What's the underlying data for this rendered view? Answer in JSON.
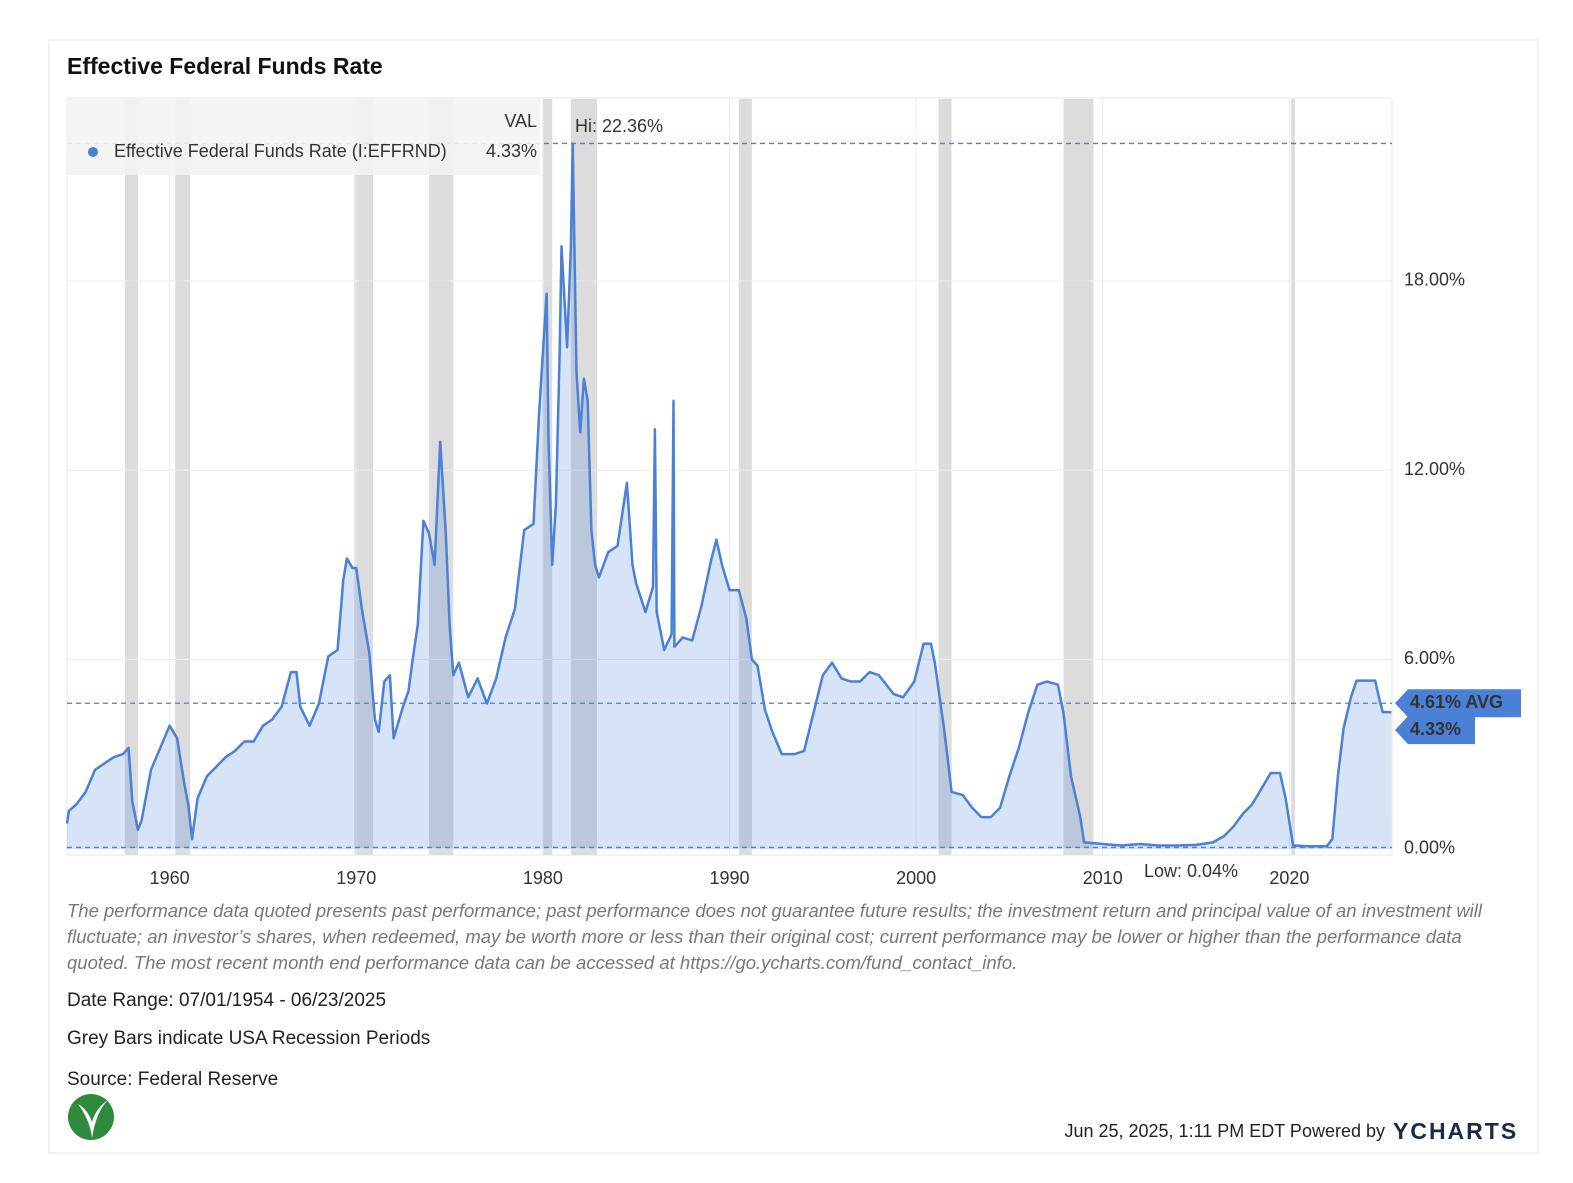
{
  "chart_data": {
    "type": "line",
    "title": "Effective Federal Funds Rate",
    "legend_header": "VAL",
    "series": [
      {
        "name": "Effective Federal Funds Rate (I:EFFRND)",
        "color": "#4a80d6",
        "values": [
          0.8,
          1.2,
          1.4,
          1.8,
          2.5,
          2.7,
          2.9,
          3.0,
          3.2,
          1.5,
          0.6,
          0.9,
          2.5,
          3.2,
          3.9,
          3.5,
          2.0,
          1.4,
          0.3,
          1.6,
          2.3,
          2.6,
          2.9,
          3.1,
          3.4,
          3.4,
          3.9,
          4.1,
          4.5,
          5.6,
          5.6,
          4.5,
          3.9,
          4.6,
          6.1,
          6.3,
          8.5,
          9.2,
          8.9,
          8.9,
          7.6,
          6.2,
          4.1,
          3.7,
          5.3,
          5.5,
          3.5,
          4.5,
          5.0,
          5.9,
          7.1,
          10.4,
          10.0,
          9.0,
          12.9,
          10.0,
          7.1,
          5.5,
          5.9,
          4.8,
          5.4,
          4.6,
          5.4,
          6.7,
          7.6,
          10.1,
          10.3,
          13.8,
          17.6,
          13.0,
          9.0,
          10.9,
          15.8,
          19.1,
          15.9,
          19.1,
          22.36,
          15.1,
          13.2,
          14.9,
          14.2,
          10.1,
          9.0,
          8.6,
          9.4,
          9.6,
          11.6,
          9.0,
          8.4,
          7.5,
          8.3,
          13.3,
          7.5,
          6.3,
          6.8,
          14.2,
          6.4,
          6.7,
          6.6,
          7.7,
          9.1,
          9.8,
          9.0,
          8.2,
          8.2,
          7.3,
          6.0,
          5.8,
          4.4,
          3.7,
          3.0,
          3.0,
          3.1,
          4.3,
          5.5,
          5.9,
          5.4,
          5.3,
          5.3,
          5.6,
          5.5,
          4.9,
          4.8,
          5.3,
          6.5,
          6.5,
          5.9,
          3.8,
          1.8,
          1.7,
          1.3,
          1.0,
          1.0,
          1.3,
          2.3,
          3.2,
          4.3,
          5.2,
          5.3,
          5.2,
          4.3,
          2.3,
          1.0,
          0.2,
          0.15,
          0.1,
          0.15,
          0.1,
          0.1,
          0.12,
          0.2,
          0.4,
          0.7,
          1.1,
          1.4,
          1.9,
          2.4,
          2.4,
          1.6,
          0.1,
          0.08,
          0.08,
          0.3,
          2.3,
          3.8,
          4.8,
          5.33,
          5.33,
          4.8,
          4.33,
          4.33
        ]
      }
    ],
    "x": [
      1954.5,
      1954.6,
      1955,
      1955.5,
      1956,
      1956.5,
      1957,
      1957.5,
      1957.8,
      1958.0,
      1958.3,
      1958.5,
      1959,
      1959.5,
      1960,
      1960.4,
      1960.8,
      1961.0,
      1961.2,
      1961.5,
      1962,
      1962.5,
      1963,
      1963.5,
      1964,
      1964.5,
      1965,
      1965.5,
      1966,
      1966.5,
      1966.8,
      1967,
      1967.5,
      1968,
      1968.5,
      1969,
      1969.3,
      1969.5,
      1969.8,
      1970,
      1970.3,
      1970.7,
      1971,
      1971.2,
      1971.5,
      1971.8,
      1972,
      1972.5,
      1972.8,
      1973,
      1973.3,
      1973.6,
      1973.9,
      1974.2,
      1974.5,
      1974.8,
      1975.0,
      1975.2,
      1975.5,
      1976,
      1976.5,
      1977,
      1977.5,
      1978,
      1978.5,
      1979,
      1979.5,
      1979.8,
      1980.2,
      1980.3,
      1980.5,
      1980.7,
      1980.9,
      1981.0,
      1981.3,
      1981.5,
      1981.6,
      1981.8,
      1982,
      1982.2,
      1982.4,
      1982.6,
      1982.8,
      1983,
      1983.5,
      1984,
      1984.5,
      1984.8,
      1985,
      1985.5,
      1985.9,
      1986.0,
      1986.1,
      1986.5,
      1986.9,
      1987.0,
      1987.05,
      1987.5,
      1988,
      1988.5,
      1989,
      1989.3,
      1989.6,
      1990,
      1990.5,
      1990.9,
      1991.2,
      1991.5,
      1991.9,
      1992.3,
      1992.8,
      1993.5,
      1994,
      1994.5,
      1995,
      1995.5,
      1996,
      1996.5,
      1997,
      1997.5,
      1998,
      1998.8,
      1999.3,
      1999.9,
      2000.4,
      2000.8,
      2001,
      2001.5,
      2001.9,
      2002.5,
      2003,
      2003.5,
      2004,
      2004.5,
      2005,
      2005.5,
      2006,
      2006.5,
      2007,
      2007.6,
      2007.9,
      2008.3,
      2008.8,
      2009,
      2010,
      2011,
      2012,
      2013,
      2014,
      2015,
      2015.9,
      2016.5,
      2017,
      2017.5,
      2018,
      2018.5,
      2019,
      2019.5,
      2019.8,
      2020.2,
      2021,
      2022,
      2022.3,
      2022.6,
      2022.9,
      2023.3,
      2023.6,
      2024.6,
      2024.8,
      2025.0,
      2025.47
    ],
    "recessions": [
      [
        1957.6,
        1958.3
      ],
      [
        1960.3,
        1961.1
      ],
      [
        1969.9,
        1970.9
      ],
      [
        1973.9,
        1975.2
      ],
      [
        1980.0,
        1980.5
      ],
      [
        1981.5,
        1982.9
      ],
      [
        1990.5,
        1991.2
      ],
      [
        2001.2,
        2001.9
      ],
      [
        2007.9,
        2009.5
      ],
      [
        2020.1,
        2020.3
      ]
    ],
    "xlim": [
      1954.5,
      2025.5
    ],
    "xticks": [
      1960,
      1970,
      1980,
      1990,
      2000,
      2010,
      2020
    ],
    "ylim": [
      -0.2,
      23.8
    ],
    "yticks": [
      {
        "value": 0,
        "label": "0.00%"
      },
      {
        "value": 6,
        "label": "6.00%"
      },
      {
        "value": 12,
        "label": "12.00%"
      },
      {
        "value": 18,
        "label": "18.00%"
      }
    ],
    "grid": true,
    "annotations": {
      "high": {
        "value": 22.36,
        "label": "Hi: 22.36%"
      },
      "low": {
        "value": 0.04,
        "label": "Low: 0.04%"
      },
      "average": {
        "value": 4.61,
        "label": "4.61% AVG"
      },
      "last": {
        "value": 4.33,
        "label": "4.33%"
      }
    },
    "notes": {
      "disclaimer": "The performance data quoted presents past performance; past performance does not guarantee future results; the investment return and principal value of an investment will fluctuate; an investor’s shares, when redeemed, may be worth more or less than their original cost; current performance may be lower or higher than the performance data quoted. The most recent month end performance data can be accessed at https://go.ycharts.com/fund_contact_info.",
      "date_range": "Date Range: 07/01/1954 - 06/23/2025",
      "recession_note": "Grey Bars indicate USA Recession Periods",
      "source": "Source: Federal Reserve",
      "timestamp": "Jun 25, 2025, 1:11 PM EDT Powered by",
      "brand": "YCHARTS"
    }
  }
}
